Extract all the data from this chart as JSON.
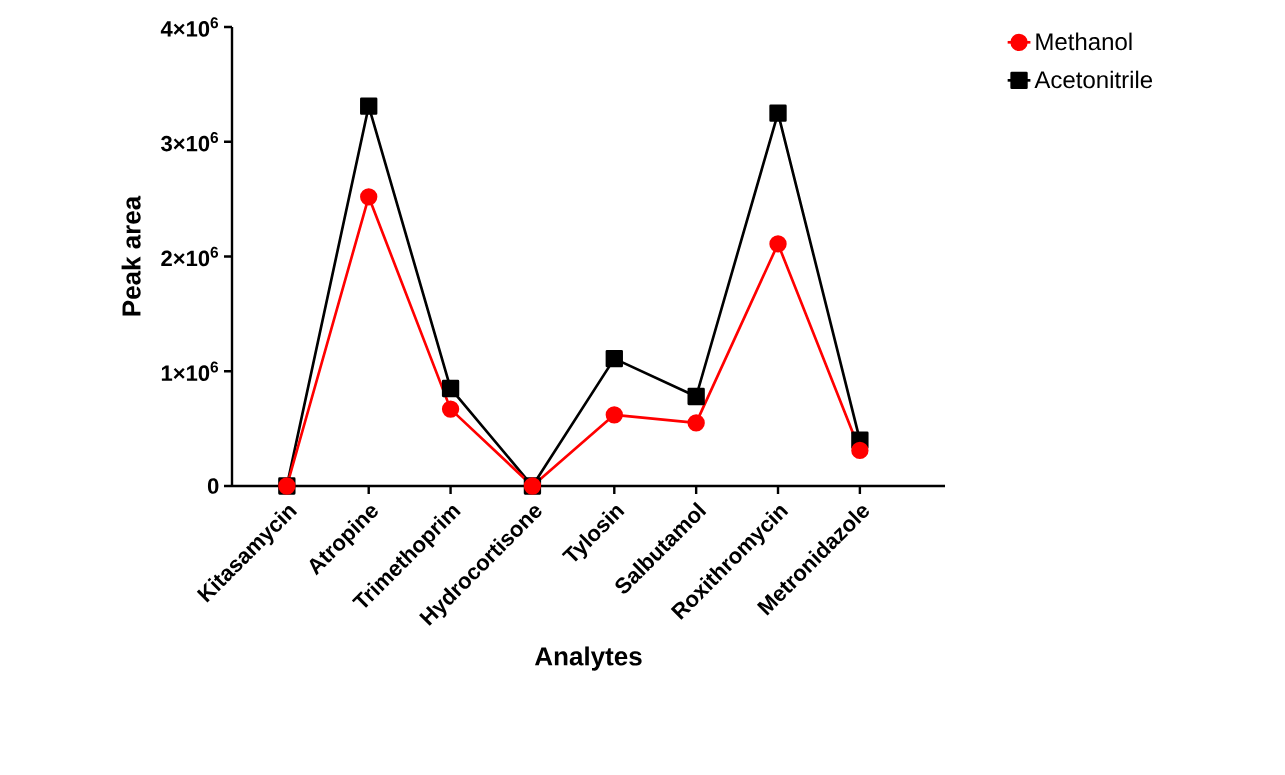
{
  "chart_data": {
    "type": "line",
    "xlabel": "Analytes",
    "ylabel": "Peak area",
    "categories": [
      "Kitasamycin",
      "Atropine",
      "Trimethoprim",
      "Hydrocortisone",
      "Tylosin",
      "Salbutamol",
      "Roxithromycin",
      "Metronidazole"
    ],
    "series": [
      {
        "name": "Methanol",
        "color": "#ff0000",
        "marker": "circle",
        "values": [
          0,
          2520000,
          670000,
          0,
          620000,
          550000,
          2110000,
          310000
        ]
      },
      {
        "name": "Acetonitrile",
        "color": "#000000",
        "marker": "square",
        "values": [
          0,
          3310000,
          850000,
          0,
          1110000,
          780000,
          3250000,
          400000
        ]
      }
    ],
    "ylim": [
      0,
      4000000
    ],
    "yticks": [
      0,
      {
        "value": 1000000,
        "label": "1×10$^{6}$"
      },
      {
        "value": 2000000,
        "label": "2×10$^{6}$"
      },
      {
        "value": 3000000,
        "label": "3×10$^{6}$"
      },
      {
        "value": 4000000,
        "label": "4×10$^{6}$"
      }
    ],
    "legend": "top right",
    "line_style": "solid"
  }
}
